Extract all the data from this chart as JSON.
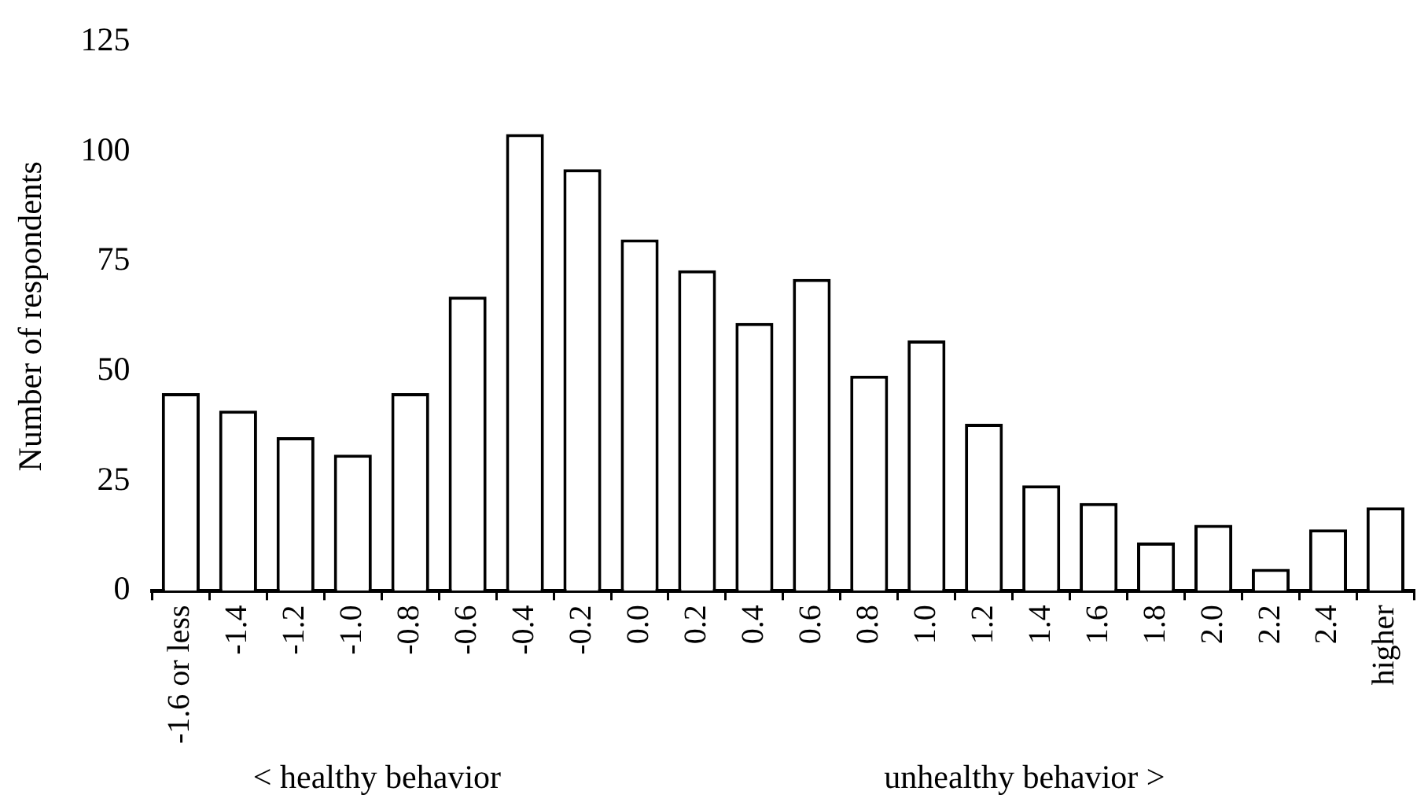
{
  "chart_data": {
    "type": "bar",
    "ylabel": "Number of respondents",
    "categories": [
      "-1.6 or less",
      "-1.4",
      "-1.2",
      "-1.0",
      "-0.8",
      "-0.6",
      "-0.4",
      "-0.2",
      "0.0",
      "0.2",
      "0.4",
      "0.6",
      "0.8",
      "1.0",
      "1.2",
      "1.4",
      "1.6",
      "1.8",
      "2.0",
      "2.2",
      "2.4",
      "higher"
    ],
    "values": [
      45,
      41,
      35,
      31,
      45,
      67,
      104,
      96,
      80,
      73,
      61,
      71,
      49,
      57,
      38,
      24,
      20,
      11,
      15,
      5,
      14,
      19
    ],
    "color": "#ffffff",
    "ylim": [
      0,
      125
    ],
    "yticks": [
      0,
      25,
      50,
      75,
      100,
      125
    ],
    "grid": false,
    "legend": false,
    "annotations": [
      "< healthy behavior",
      "unhealthy behavior >"
    ]
  }
}
